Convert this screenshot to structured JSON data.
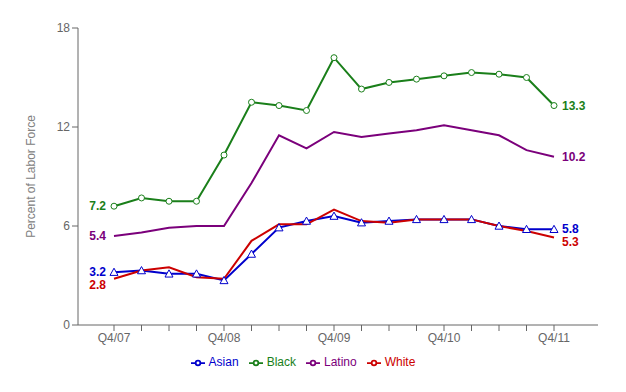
{
  "chart_data": {
    "type": "line",
    "y_label": "Percent of Labor Force",
    "categories": [
      "Q4/07",
      null,
      null,
      null,
      "Q4/08",
      null,
      null,
      null,
      "Q4/09",
      null,
      null,
      null,
      "Q4/10",
      null,
      null,
      null,
      "Q4/11"
    ],
    "ylim": [
      0,
      18
    ],
    "yticks": [
      0,
      6,
      12,
      18
    ],
    "grid": false,
    "legend": "bottom",
    "series": [
      {
        "name": "Black",
        "color": "#1a7f1a",
        "marker": "circle",
        "values": [
          7.2,
          7.7,
          7.5,
          7.5,
          10.3,
          13.5,
          13.3,
          13.0,
          16.2,
          14.3,
          14.7,
          14.9,
          15.1,
          15.3,
          15.2,
          15.0,
          13.3
        ]
      },
      {
        "name": "Latino",
        "color": "#7b007b",
        "values": [
          5.4,
          5.6,
          5.9,
          6.0,
          6.0,
          8.6,
          11.5,
          10.7,
          11.7,
          11.4,
          11.6,
          11.8,
          12.1,
          11.8,
          11.5,
          10.6,
          10.2
        ]
      },
      {
        "name": "Asian",
        "color": "#0000cc",
        "marker": "triangle",
        "values": [
          3.2,
          3.3,
          3.1,
          3.1,
          2.7,
          4.3,
          5.9,
          6.3,
          6.6,
          6.2,
          6.3,
          6.4,
          6.4,
          6.4,
          6.0,
          5.8,
          5.8
        ]
      },
      {
        "name": "White",
        "color": "#cc0000",
        "values": [
          2.8,
          3.3,
          3.5,
          2.9,
          2.8,
          5.1,
          6.1,
          6.1,
          7.0,
          6.3,
          6.2,
          6.4,
          6.4,
          6.4,
          6.0,
          5.7,
          5.3
        ]
      }
    ],
    "annotations": [
      {
        "text": "7.2",
        "x": "Q4/07",
        "y": 7.2,
        "color": "#1a7f1a"
      },
      {
        "text": "5.4",
        "x": "Q4/07",
        "y": 5.4,
        "color": "#7b007b"
      },
      {
        "text": "3.2",
        "x": "Q4/07",
        "y": 3.2,
        "color": "#0000cc"
      },
      {
        "text": "2.8",
        "x": "Q4/07",
        "y": 2.8,
        "color": "#cc0000"
      },
      {
        "text": "13.3",
        "x": "Q4/11",
        "y": 13.3,
        "color": "#1a7f1a"
      },
      {
        "text": "10.2",
        "x": "Q4/11",
        "y": 10.2,
        "color": "#7b007b"
      },
      {
        "text": "5.8",
        "x": "Q4/11",
        "y": 5.8,
        "color": "#0000cc"
      },
      {
        "text": "5.3",
        "x": "Q4/11",
        "y": 5.3,
        "color": "#cc0000"
      }
    ]
  }
}
